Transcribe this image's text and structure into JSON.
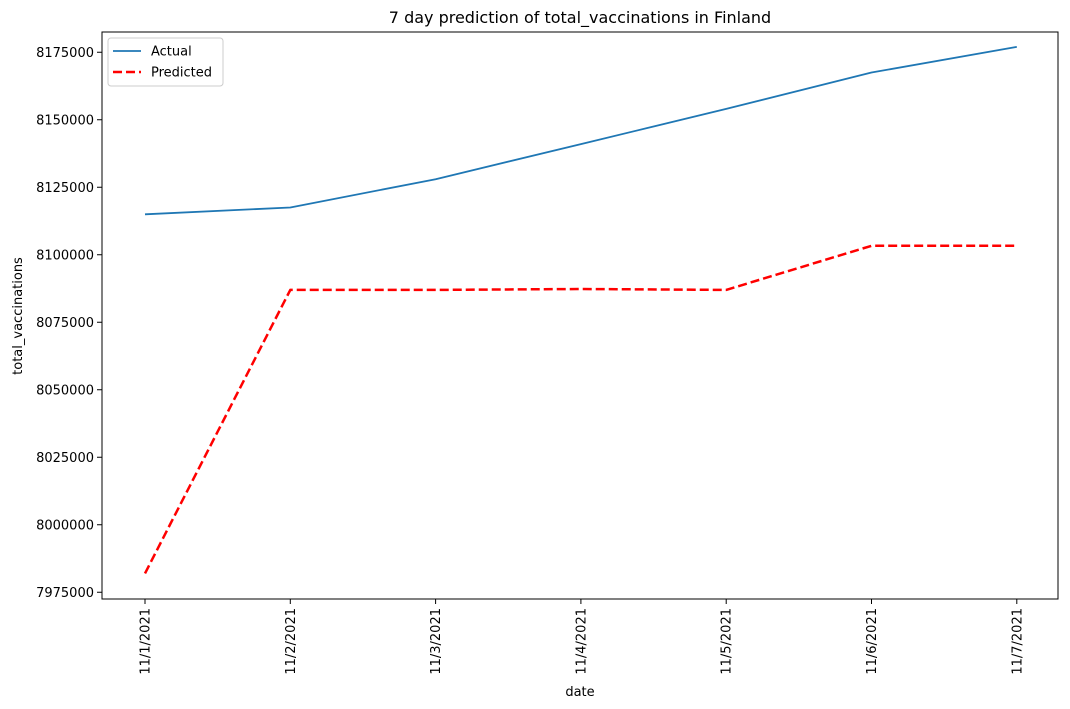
{
  "chart_data": {
    "type": "line",
    "title": "7 day prediction of total_vaccinations in Finland",
    "xlabel": "date",
    "ylabel": "total_vaccinations",
    "categories": [
      "11/1/2021",
      "11/2/2021",
      "11/3/2021",
      "11/4/2021",
      "11/5/2021",
      "11/6/2021",
      "11/7/2021"
    ],
    "ylim": [
      7972500,
      8182500
    ],
    "yticks": [
      7975000,
      8000000,
      8025000,
      8050000,
      8075000,
      8100000,
      8125000,
      8150000,
      8175000
    ],
    "grid": false,
    "legend_position": "upper-left",
    "series": [
      {
        "name": "Actual",
        "color": "#1f77b4",
        "style": "solid",
        "values": [
          8115000,
          8117500,
          8128000,
          8141000,
          8154000,
          8167500,
          8177000
        ]
      },
      {
        "name": "Predicted",
        "color": "#ff0000",
        "style": "dashed",
        "values": [
          7982000,
          8087000,
          8087000,
          8087300,
          8087000,
          8103300,
          8103300
        ]
      }
    ]
  }
}
